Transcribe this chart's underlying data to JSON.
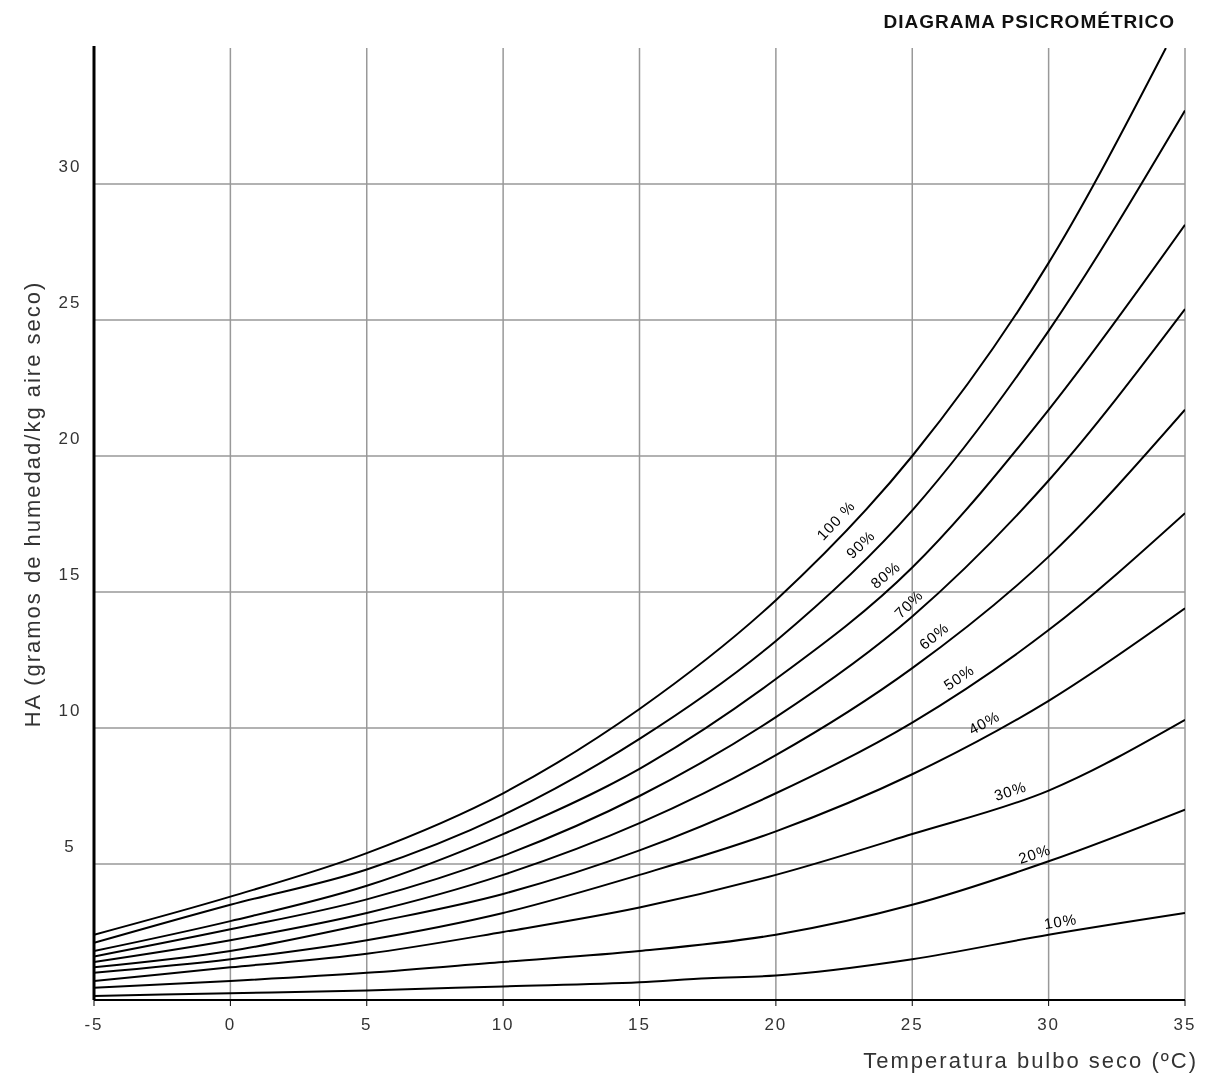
{
  "chart_data": {
    "type": "line",
    "title": "DIAGRAMA PSICROMÉTRICO",
    "xlabel": "Temperatura bulbo seco (ºC)",
    "ylabel": "HA (gramos de humedad/kg aire seco)",
    "x": [
      -5,
      0,
      5,
      10,
      15,
      20,
      25,
      30,
      35
    ],
    "xlim": [
      -5,
      35
    ],
    "xticks": [
      -5,
      0,
      5,
      10,
      15,
      20,
      25,
      30,
      35
    ],
    "ylim": [
      0,
      35
    ],
    "yticks": [
      {
        "value": 0,
        "label": null
      },
      5,
      10,
      15,
      20,
      25,
      30
    ],
    "grid": true,
    "marker": "none",
    "line_style": "solid",
    "series": [
      {
        "name": "10%",
        "color": "#000000",
        "x": [
          -5,
          0,
          5,
          10,
          15,
          17.5,
          20,
          25,
          30,
          35
        ],
        "values": [
          0.15,
          0.25,
          0.35,
          0.5,
          0.65,
          0.8,
          0.9,
          1.5,
          2.4,
          3.2
        ]
      },
      {
        "name": "20%",
        "color": "#000000",
        "values": [
          0.45,
          0.7,
          1.0,
          1.4,
          1.8,
          2.4,
          3.5,
          5.1,
          7.0
        ]
      },
      {
        "name": "30%",
        "color": "#000000",
        "values": [
          0.7,
          1.2,
          1.7,
          2.5,
          3.4,
          4.6,
          6.1,
          7.7,
          10.3
        ]
      },
      {
        "name": "40%",
        "color": "#000000",
        "values": [
          1.0,
          1.5,
          2.2,
          3.2,
          4.6,
          6.2,
          8.3,
          11.0,
          14.4
        ]
      },
      {
        "name": "50%",
        "color": "#000000",
        "values": [
          1.2,
          1.8,
          2.8,
          3.9,
          5.5,
          7.6,
          10.2,
          13.6,
          17.9
        ]
      },
      {
        "name": "60%",
        "color": "#000000",
        "values": [
          1.4,
          2.2,
          3.2,
          4.6,
          6.5,
          9.0,
          12.2,
          16.3,
          21.7
        ]
      },
      {
        "name": "70%",
        "color": "#000000",
        "values": [
          1.6,
          2.6,
          3.7,
          5.3,
          7.5,
          10.4,
          14.1,
          19.1,
          25.4
        ]
      },
      {
        "name": "80%",
        "color": "#000000",
        "values": [
          1.8,
          2.9,
          4.2,
          6.1,
          8.5,
          11.8,
          15.9,
          21.7,
          28.5
        ]
      },
      {
        "name": "90%",
        "color": "#000000",
        "values": [
          2.1,
          3.5,
          4.8,
          6.8,
          9.6,
          13.2,
          18.0,
          24.6,
          32.7
        ]
      },
      {
        "name": "100 %",
        "color": "#000000",
        "x": [
          -5,
          0,
          5,
          10,
          15,
          20,
          25,
          30,
          34.3
        ],
        "values": [
          2.4,
          3.8,
          5.4,
          7.6,
          10.7,
          14.7,
          20.0,
          27.1,
          35
        ]
      }
    ]
  }
}
